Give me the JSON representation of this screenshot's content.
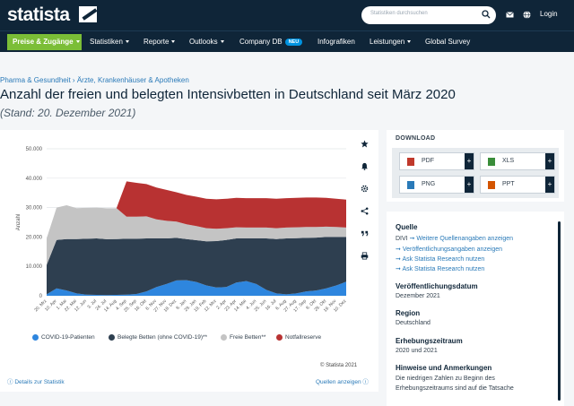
{
  "header": {
    "logo": "statista",
    "search_placeholder": "Statistiken durchsuchen",
    "login": "Login"
  },
  "nav": {
    "primary": "Preise & Zugänge",
    "items": [
      "Statistiken",
      "Reporte",
      "Outlooks",
      "Company DB",
      "Infografiken",
      "Leistungen",
      "Global Survey"
    ],
    "badge": "NEU"
  },
  "breadcrumb": "Pharma & Gesundheit › Ärzte, Krankenhäuser & Apotheken",
  "page_title": "Anzahl der freien und belegten Intensivbetten in Deutschland seit März 2020",
  "subtitle": "(Stand: 20. Dezember 2021)",
  "chart": {
    "legend": [
      "COVID-19-Patienten",
      "Belegte Betten (ohne COVID-19)**",
      "Freie Betten**",
      "Notfallreserve"
    ],
    "colors": [
      "#2e86de",
      "#2e3f50",
      "#c4c4c4",
      "#b83232"
    ],
    "copyright": "© Statista 2021",
    "details_link": "Details zur Statistik",
    "sources_link": "Quellen anzeigen"
  },
  "chart_data": {
    "type": "area",
    "stacked": true,
    "ylabel": "Anzahl",
    "ylim": [
      0,
      50000
    ],
    "yticks": [
      "0",
      "10.000",
      "20.000",
      "30.000",
      "40.000",
      "50.000"
    ],
    "xticks": [
      "20. Mrz",
      "10. Apr",
      "1. Mai",
      "22. Mai",
      "12. Jun",
      "3. Jul",
      "24. Jul",
      "14. Aug",
      "4. Sep",
      "25. Sep",
      "16. Okt",
      "6. Nov",
      "27. Nov",
      "18. Dez",
      "8. Jan",
      "29. Jan",
      "19. Feb",
      "12. Mrz",
      "2. Apr",
      "23. Apr",
      "14. Mai",
      "4. Jun",
      "25. Jun",
      "16. Jul",
      "6. Aug",
      "27. Aug",
      "17. Sep",
      "8. Okt",
      "29. Okt",
      "19. Nov",
      "10. Dez"
    ],
    "series": [
      {
        "name": "COVID-19-Patienten",
        "values": [
          500,
          2500,
          1800,
          800,
          400,
          300,
          250,
          300,
          400,
          600,
          1500,
          3000,
          4000,
          5200,
          5300,
          4700,
          3500,
          2800,
          3000,
          4500,
          5000,
          4000,
          2000,
          800,
          500,
          800,
          1500,
          1800,
          2500,
          3500,
          4800
        ]
      },
      {
        "name": "Belegte Betten (ohne COVID-19)**",
        "values": [
          10000,
          16500,
          17500,
          18500,
          19000,
          19200,
          19000,
          19000,
          19000,
          18800,
          18000,
          16500,
          15500,
          14500,
          14000,
          14200,
          15000,
          15800,
          16000,
          15000,
          14500,
          15500,
          17500,
          18500,
          19000,
          18800,
          18200,
          18000,
          17500,
          16500,
          15200
        ]
      },
      {
        "name": "Freie Betten**",
        "values": [
          9000,
          11000,
          11500,
          10500,
          10500,
          10500,
          10500,
          10500,
          7500,
          7500,
          7500,
          6500,
          6000,
          5500,
          5000,
          4800,
          4500,
          4200,
          4000,
          3800,
          3700,
          3700,
          3700,
          3700,
          3700,
          3700,
          3700,
          3600,
          3500,
          3400,
          3200
        ]
      },
      {
        "name": "Notfallreserve",
        "values": [
          0,
          0,
          0,
          0,
          0,
          0,
          0,
          0,
          12000,
          11500,
          11000,
          10800,
          10500,
          10000,
          10000,
          10000,
          10000,
          10000,
          10000,
          10000,
          10000,
          10000,
          10000,
          10000,
          10000,
          10000,
          10000,
          10000,
          9800,
          9600,
          9500
        ]
      }
    ]
  },
  "download": {
    "title": "DOWNLOAD",
    "buttons": [
      "PDF",
      "XLS",
      "PNG",
      "PPT"
    ],
    "button_colors": [
      "#c0392b",
      "#3a8d3a",
      "#2a7ab8",
      "#d35400"
    ]
  },
  "info": {
    "source_title": "Quelle",
    "source_line": "DIVI",
    "source_link": "Weitere Quellenangaben anzeigen",
    "links": [
      "Veröffentlichungsangaben anzeigen",
      "Ask Statista Research nutzen",
      "Ask Statista Research nutzen"
    ],
    "pub_title": "Veröffentlichungsdatum",
    "pub_value": "Dezember 2021",
    "region_title": "Region",
    "region_value": "Deutschland",
    "period_title": "Erhebungszeitraum",
    "period_value": "2020 und 2021",
    "notes_title": "Hinweise und Anmerkungen",
    "notes_line1": "Die niedrigen Zahlen zu Beginn des",
    "notes_line2": "Erhebungszeitraums sind auf die Tatsache"
  }
}
